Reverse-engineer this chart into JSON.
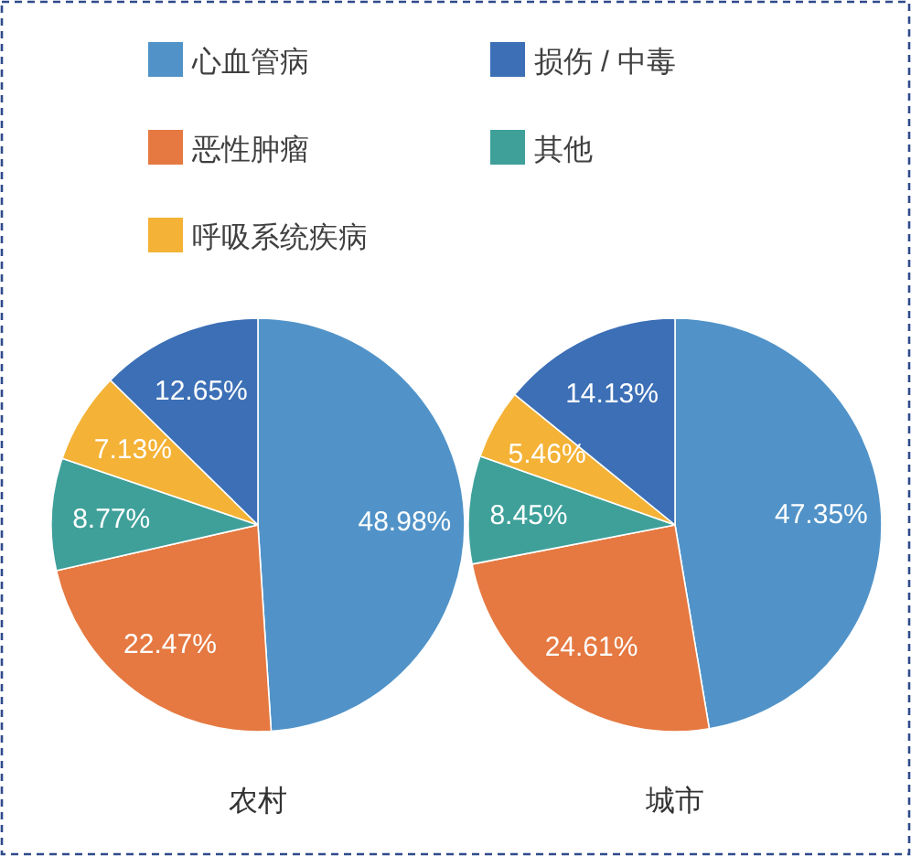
{
  "chart_data": {
    "type": "pie",
    "categories": [
      "心血管病",
      "恶性肿瘤",
      "其他",
      "呼吸系统疾病",
      "损伤 / 中毒"
    ],
    "colors": [
      "#5193c8",
      "#e57941",
      "#3fa09a",
      "#f4b236",
      "#3c6fb6"
    ],
    "series": [
      {
        "name": "农村",
        "values": [
          48.98,
          22.47,
          8.77,
          7.13,
          12.65
        ],
        "value_labels": [
          "48.98%",
          "22.47%",
          "8.77%",
          "7.13%",
          "12.65%"
        ]
      },
      {
        "name": "城市",
        "values": [
          47.35,
          24.61,
          8.45,
          5.46,
          14.13
        ],
        "value_labels": [
          "47.35%",
          "24.61%",
          "8.45%",
          "5.46%",
          "14.13%"
        ]
      }
    ],
    "legend": "top"
  }
}
